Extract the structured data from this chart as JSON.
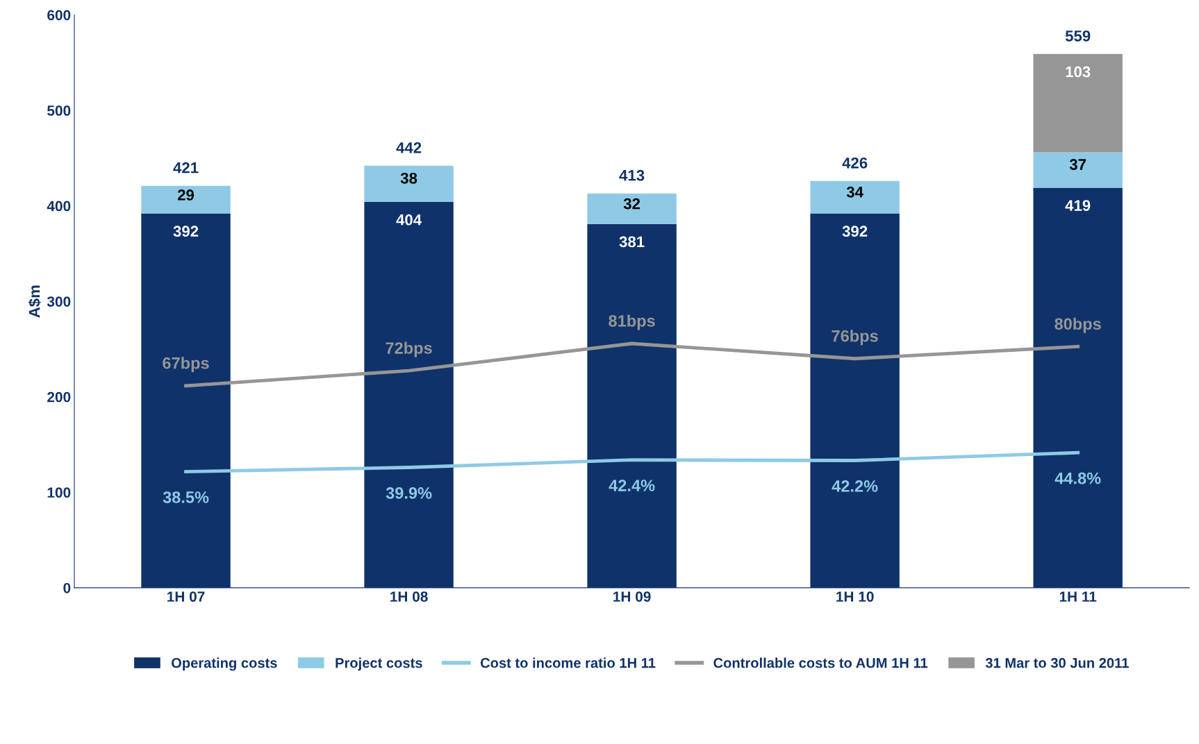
{
  "chart_data": {
    "type": "bar",
    "stacked": true,
    "ylabel": "A$m",
    "categories": [
      "1H 07",
      "1H 08",
      "1H 09",
      "1H 10",
      "1H 11"
    ],
    "ylim": [
      0,
      600
    ],
    "yticks": [
      0,
      100,
      200,
      300,
      400,
      500,
      600
    ],
    "y2lim": [
      0,
      190
    ],
    "grid": false,
    "legend": "bottom",
    "data_labels": true,
    "totals": [
      "421",
      "442",
      "413",
      "426",
      "559"
    ],
    "series": [
      {
        "name": "Operating costs",
        "color": "#10326a",
        "values": [
          392,
          404,
          381,
          392,
          419
        ]
      },
      {
        "name": "Project costs",
        "color": "#8ecae6",
        "values": [
          29,
          38,
          32,
          34,
          37
        ]
      },
      {
        "name": "Cost to income ratio 1H 11",
        "type": "line",
        "axis": "y2",
        "color": "#8ecae6",
        "values": [
          38.5,
          39.9,
          42.4,
          42.2,
          44.8
        ],
        "value_labels": [
          "38.5%",
          "39.9%",
          "42.4%",
          "42.2%",
          "44.8%"
        ]
      },
      {
        "name": "Controllable costs to AUM 1H 11",
        "type": "line",
        "axis": "y2",
        "color": "#969696",
        "values": [
          67,
          72,
          81,
          76,
          80
        ],
        "value_labels": [
          "67bps",
          "72bps",
          "81bps",
          "76bps",
          "80bps"
        ]
      },
      {
        "name": "31 Mar to 30 Jun 2011",
        "color": "#969696",
        "values": [
          null,
          null,
          null,
          null,
          103
        ]
      }
    ]
  }
}
